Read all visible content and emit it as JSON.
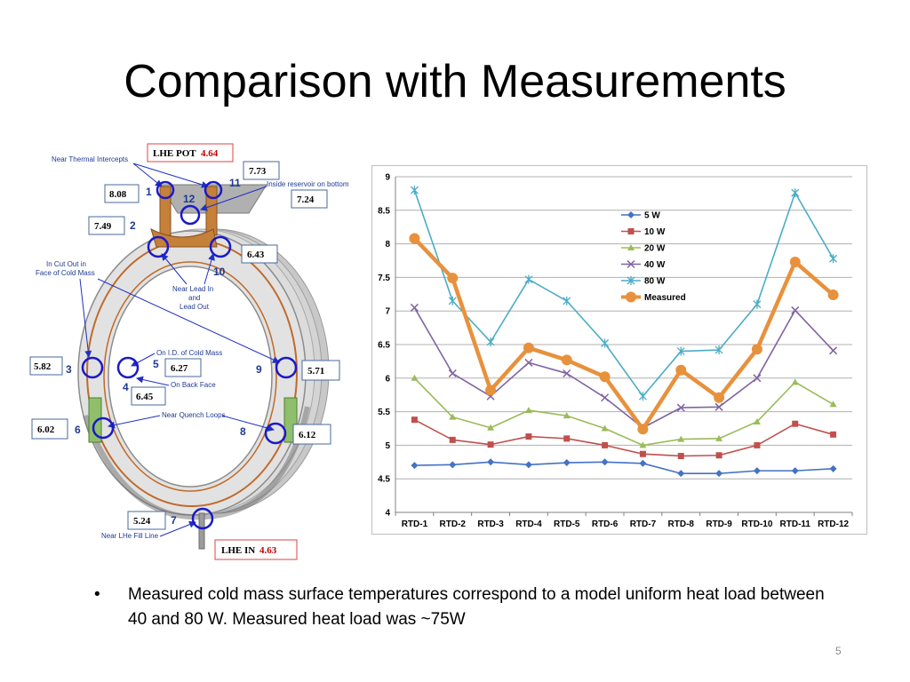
{
  "slide": {
    "title": "Comparison with Measurements",
    "bullet": "Measured cold mass surface temperatures correspond to a model uniform heat load between 40 and 80 W. Measured heat load was ~75W",
    "bullet_symbol": "•",
    "page_number": "5"
  },
  "diagram": {
    "lhe_pot_label": "LHE POT",
    "lhe_pot_value": "4.64",
    "lhe_in_label": "LHE IN",
    "lhe_in_value": "4.63",
    "annotations": {
      "near_thermal_intercepts": "Near Thermal Intercepts",
      "inside_reservoir": "Inside reservoir on bottom",
      "cut_out_1": "In Cut Out in",
      "cut_out_2": "Face of Cold Mass",
      "near_lead_1": "Near Lead In",
      "near_lead_2": "and",
      "near_lead_3": "Lead Out",
      "on_id": "On I.D. of Cold Mass",
      "on_back": "On Back Face",
      "near_quench": "Near Quench Loops",
      "near_fill": "Near LHe Fill Line"
    },
    "sensors": {
      "s1": {
        "num": "1",
        "value": "8.08"
      },
      "s2": {
        "num": "2",
        "value": "7.49"
      },
      "s3": {
        "num": "3",
        "value": "5.82"
      },
      "s4": {
        "num": "4",
        "value": "6.45"
      },
      "s5": {
        "num": "5",
        "value": "6.27"
      },
      "s6": {
        "num": "6",
        "value": "6.02"
      },
      "s7": {
        "num": "7",
        "value": "5.24"
      },
      "s8": {
        "num": "8",
        "value": "6.12"
      },
      "s9": {
        "num": "9",
        "value": "5.71"
      },
      "s10": {
        "num": "10",
        "value": "6.43"
      },
      "s11": {
        "num": "11",
        "value": "7.73"
      },
      "s12": {
        "num": "12",
        "value": "7.24"
      }
    }
  },
  "chart_data": {
    "type": "line",
    "categories": [
      "RTD-1",
      "RTD-2",
      "RTD-3",
      "RTD-4",
      "RTD-5",
      "RTD-6",
      "RTD-7",
      "RTD-8",
      "RTD-9",
      "RTD-10",
      "RTD-11",
      "RTD-12"
    ],
    "ylim": [
      4,
      9
    ],
    "yticks": [
      "4",
      "4.5",
      "5",
      "5.5",
      "6",
      "6.5",
      "7",
      "7.5",
      "8",
      "8.5",
      "9"
    ],
    "grid": true,
    "legend_position": "upper-center",
    "series": [
      {
        "name": "5 W",
        "color": "#4472c4",
        "marker": "diamond",
        "values": [
          4.7,
          4.71,
          4.75,
          4.71,
          4.74,
          4.75,
          4.73,
          4.58,
          4.58,
          4.62,
          4.62,
          4.65
        ]
      },
      {
        "name": "10 W",
        "color": "#c0504d",
        "marker": "square",
        "values": [
          5.38,
          5.08,
          5.01,
          5.13,
          5.1,
          5.0,
          4.87,
          4.84,
          4.85,
          5.0,
          5.32,
          5.16
        ]
      },
      {
        "name": "20 W",
        "color": "#9bbb59",
        "marker": "triangle",
        "values": [
          6.0,
          5.42,
          5.26,
          5.52,
          5.44,
          5.25,
          5.0,
          5.09,
          5.1,
          5.35,
          5.94,
          5.61
        ]
      },
      {
        "name": "40 W",
        "color": "#8064a2",
        "marker": "x",
        "values": [
          7.05,
          6.07,
          5.73,
          6.23,
          6.07,
          5.71,
          5.26,
          5.56,
          5.57,
          6.0,
          7.01,
          6.41
        ]
      },
      {
        "name": "80 W",
        "color": "#4bacc6",
        "marker": "star",
        "values": [
          8.8,
          7.15,
          6.54,
          7.47,
          7.15,
          6.52,
          5.73,
          6.4,
          6.42,
          7.1,
          8.76,
          7.78
        ]
      },
      {
        "name": "Measured",
        "color": "#e8913c",
        "marker": "circle",
        "values": [
          8.08,
          7.49,
          5.82,
          6.45,
          6.27,
          6.02,
          5.24,
          6.12,
          5.71,
          6.43,
          7.73,
          7.24
        ]
      }
    ]
  }
}
